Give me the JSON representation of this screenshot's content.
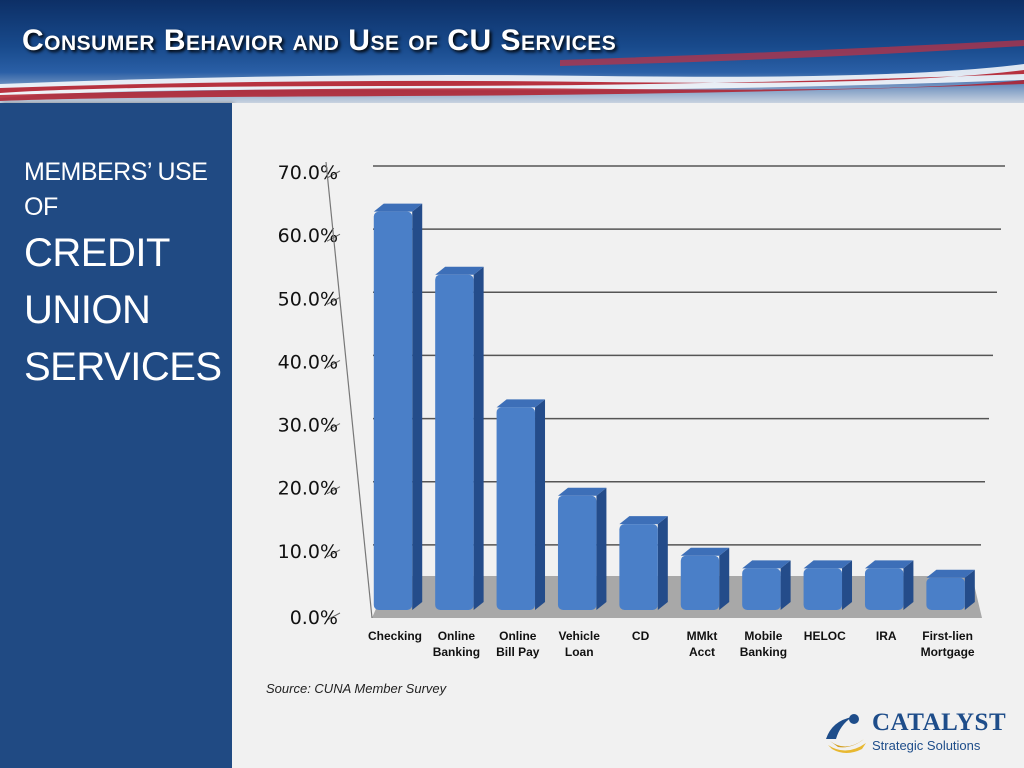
{
  "slide": {
    "title": "Consumer Behavior and Use of CU Services",
    "side_panel": {
      "subtitle": "MEMBERS’ USE OF",
      "heading": "CREDIT UNION SERVICES"
    },
    "source": "Source: CUNA Member Survey",
    "logo": {
      "word": "CATALYST",
      "tagline": "Strategic Solutions"
    }
  },
  "colors": {
    "bar_front": "#4a7fc8",
    "bar_side": "#244c8a",
    "bar_top": "#3d6fb8",
    "floor": "#a8a8a8",
    "panel": "#204a83"
  },
  "chart_data": {
    "type": "bar",
    "title": "",
    "xlabel": "",
    "ylabel": "",
    "ylim": [
      0,
      70
    ],
    "grid": true,
    "categories": [
      "Checking",
      "Online Banking",
      "Online Bill Pay",
      "Vehicle Loan",
      "CD",
      "MMkt Acct",
      "Mobile Banking",
      "HELOC",
      "IRA",
      "First-lien Mortgage"
    ],
    "category_lines": [
      [
        "Checking"
      ],
      [
        "Online",
        "Banking"
      ],
      [
        "Online",
        "Bill Pay"
      ],
      [
        "Vehicle",
        "Loan"
      ],
      [
        "CD"
      ],
      [
        "MMkt",
        "Acct"
      ],
      [
        "Mobile",
        "Banking"
      ],
      [
        "HELOC"
      ],
      [
        "IRA"
      ],
      [
        "First-lien",
        "Mortgage"
      ]
    ],
    "values": [
      65.0,
      55.0,
      34.0,
      20.0,
      15.5,
      10.5,
      8.5,
      8.5,
      8.5,
      7.0
    ],
    "y_ticks": [
      "0.0%",
      "10.0%",
      "20.0%",
      "30.0%",
      "40.0%",
      "50.0%",
      "60.0%",
      "70.0%"
    ]
  }
}
